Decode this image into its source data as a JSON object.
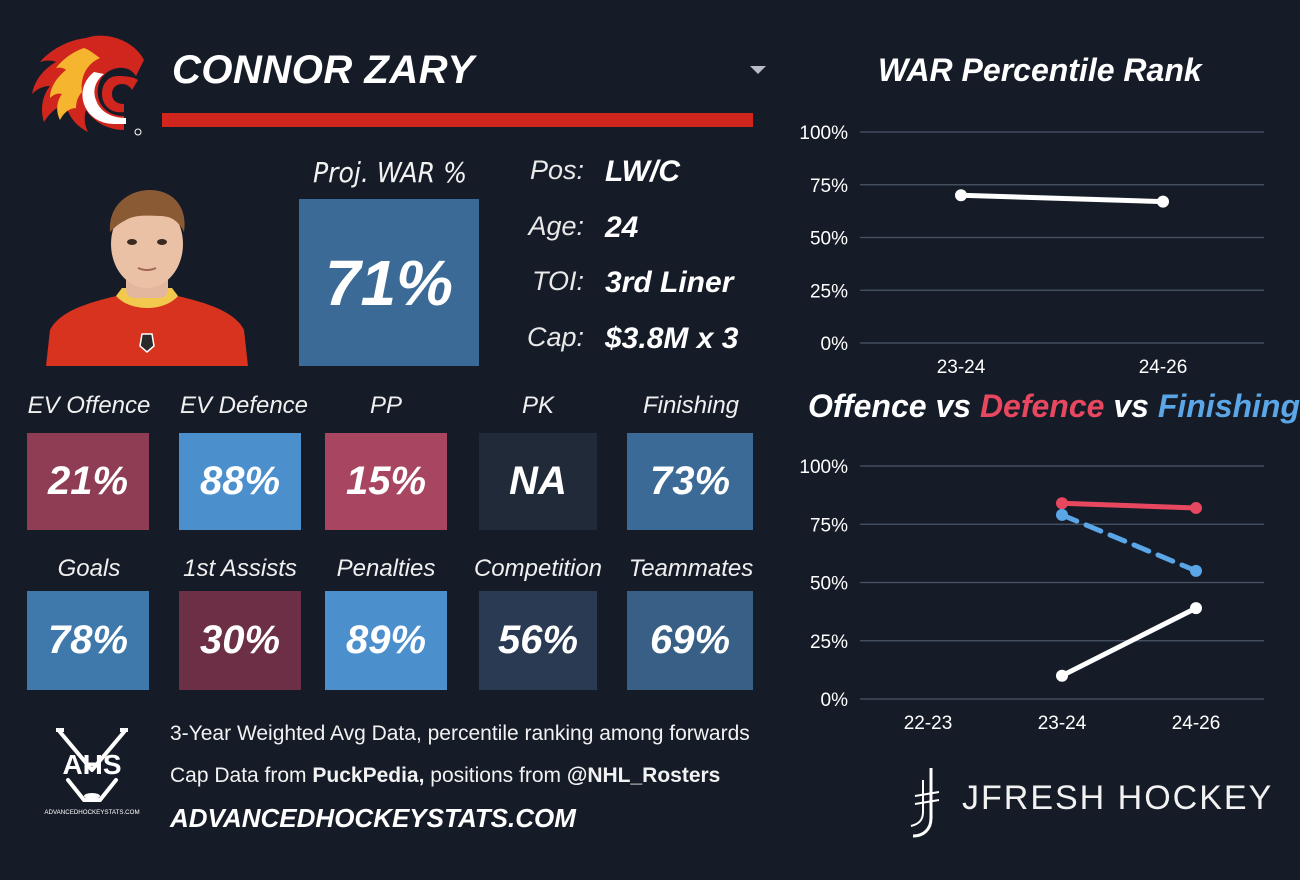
{
  "player": {
    "name": "CONNOR ZARY",
    "proj_war_label": "Proj. WAR %",
    "proj_war_value": "71%",
    "info": [
      {
        "label": "Pos:",
        "value": "LW/C"
      },
      {
        "label": "Age:",
        "value": "24"
      },
      {
        "label": "TOI:",
        "value": "3rd Liner"
      },
      {
        "label": "Cap:",
        "value": "$3.8M x 3"
      }
    ]
  },
  "tiles_row1": [
    {
      "label": "EV Offence",
      "value": "21%",
      "color": "#8f3d55"
    },
    {
      "label": "EV Defence",
      "value": "88%",
      "color": "#4b8fcc"
    },
    {
      "label": "PP",
      "value": "15%",
      "color": "#a84560"
    },
    {
      "label": "PK",
      "value": "NA",
      "color": "#202a38"
    },
    {
      "label": "Finishing",
      "value": "73%",
      "color": "#3a6a95"
    }
  ],
  "tiles_row2": [
    {
      "label": "Goals",
      "value": "78%",
      "color": "#3f78aa"
    },
    {
      "label": "1st Assists",
      "value": "30%",
      "color": "#6c2f45"
    },
    {
      "label": "Penalties",
      "value": "89%",
      "color": "#4b8fcc"
    },
    {
      "label": "Competition",
      "value": "56%",
      "color": "#293a52"
    },
    {
      "label": "Teammates",
      "value": "69%",
      "color": "#385f86"
    }
  ],
  "footer": {
    "line1": "3-Year Weighted Avg Data, percentile ranking among forwards",
    "line2_prefix": "Cap Data from ",
    "line2_bold1": "PuckPedia,",
    "line2_mid": " positions from ",
    "line2_bold2": "@NHL_Rosters",
    "site": "ADVANCEDHOCKEYSTATS.COM",
    "ahs_logo_text": "AHS",
    "ahs_logo_small": "ADVANCEDHOCKEYSTATS.COM",
    "brand": "JFRESH HOCKEY"
  },
  "colors": {
    "background": "#161c27",
    "accent_red": "#d1261e",
    "defence_red": "#e8485f",
    "finishing_blue": "#5aa6e6",
    "offence_white": "#ffffff",
    "gridline": "#4a5668"
  },
  "chart_data": [
    {
      "type": "line",
      "title": "WAR Percentile Rank",
      "x": [
        "23-24",
        "24-26"
      ],
      "yticks": [
        "100%",
        "75%",
        "50%",
        "25%",
        "0%"
      ],
      "ylim": [
        0,
        100
      ],
      "series": [
        {
          "color": "#ffffff",
          "dash": false,
          "values": [
            70,
            67
          ]
        }
      ]
    },
    {
      "type": "line",
      "title_parts": [
        {
          "text": "Offence",
          "color": "#ffffff"
        },
        {
          "text": " vs ",
          "color": "#ffffff"
        },
        {
          "text": "Defence",
          "color": "#e8485f"
        },
        {
          "text": " vs ",
          "color": "#ffffff"
        },
        {
          "text": "Finishing",
          "color": "#5aa6e6"
        }
      ],
      "x": [
        "22-23",
        "23-24",
        "24-26"
      ],
      "yticks": [
        "100%",
        "75%",
        "50%",
        "25%",
        "0%"
      ],
      "ylim": [
        0,
        100
      ],
      "series": [
        {
          "name": "Offence",
          "color": "#ffffff",
          "dash": false,
          "values": [
            null,
            10,
            39
          ]
        },
        {
          "name": "Defence",
          "color": "#e8485f",
          "dash": false,
          "values": [
            null,
            84,
            82
          ]
        },
        {
          "name": "Finishing",
          "color": "#5aa6e6",
          "dash": true,
          "values": [
            null,
            79,
            55
          ]
        }
      ]
    }
  ]
}
